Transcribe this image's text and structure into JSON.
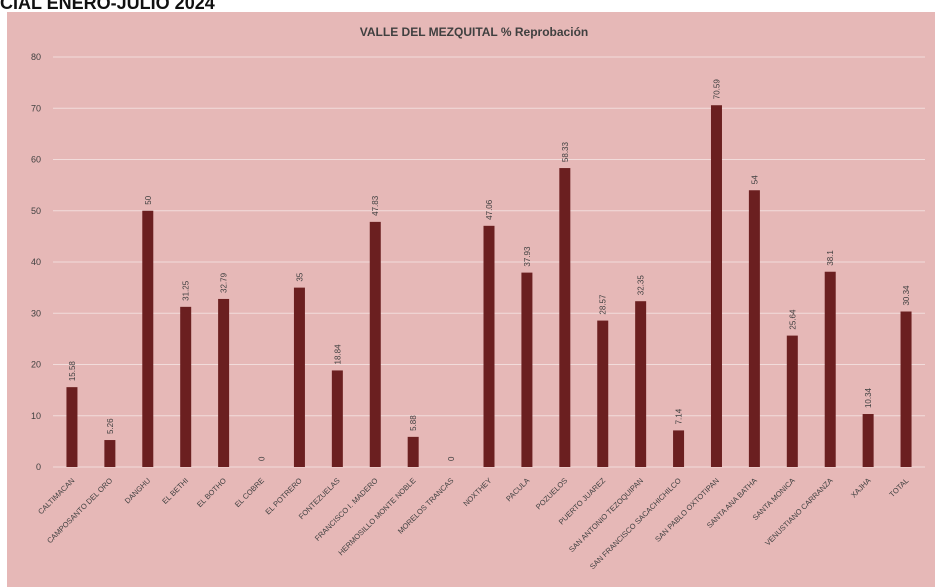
{
  "page": {
    "header_text": "CIAL ENERO-JULIO 2024"
  },
  "colors": {
    "background": "#e6b8b7",
    "bar": "#6b1f20",
    "gridline": "#f2dcdb",
    "text": "#404040"
  },
  "chart_data": {
    "type": "bar",
    "title": "VALLE DEL MEZQUITAL % Reprobación",
    "xlabel": "",
    "ylabel": "",
    "ylim": [
      0,
      80
    ],
    "yticks": [
      0,
      10,
      20,
      30,
      40,
      50,
      60,
      70,
      80
    ],
    "grid": true,
    "legend": "none",
    "categories": [
      "CALTIMACAN",
      "CAMPOSANTO DEL ORO",
      "DANGHU",
      "EL BETHI",
      "EL BOTHO",
      "EL COBRE",
      "EL POTRERO",
      "FONTEZUELAS",
      "FRANCISCO I. MADERO",
      "HERMOSILLO MONTE NOBLE",
      "MORELOS TRANCAS",
      "NOXTHEY",
      "PACULA",
      "POZUELOS",
      "PUERTO JUAREZ",
      "SAN ANTONIO TEZOQUIPAN",
      "SAN FRANCISCO SACACHICHILCO",
      "SAN PABLO OXTOTIPAN",
      "SANTA ANA BATHA",
      "SANTA MONICA",
      "VENUSTIANO CARRANZA",
      "XAJHA",
      "TOTAL"
    ],
    "values": [
      15.58,
      5.26,
      50,
      31.25,
      32.79,
      0,
      35,
      18.84,
      47.83,
      5.88,
      0,
      47.06,
      37.93,
      58.33,
      28.57,
      32.35,
      7.14,
      70.59,
      54,
      25.64,
      38.1,
      10.34,
      30.34
    ],
    "value_labels": [
      "15.58",
      "5.26",
      "50",
      "31.25",
      "32.79",
      "0",
      "35",
      "18.84",
      "47.83",
      "5.88",
      "0",
      "47.06",
      "37.93",
      "58.33",
      "28.57",
      "32.35",
      "7.14",
      "70.59",
      "54",
      "25.64",
      "38.1",
      "10.34",
      "30.34"
    ]
  }
}
